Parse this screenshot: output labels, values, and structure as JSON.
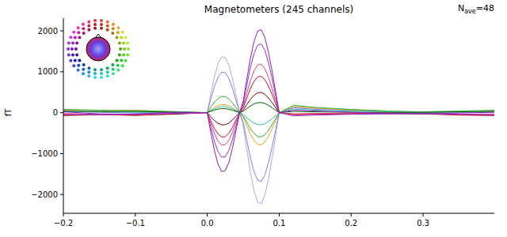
{
  "chart_data": {
    "type": "line",
    "title": "Magnetometers (245 channels)",
    "annotation": {
      "base": "N",
      "subscript": "ave",
      "suffix": "=48"
    },
    "y_label": "fT",
    "xlim": [
      -0.2,
      0.399
    ],
    "ylim": [
      -2460,
      2310
    ],
    "xticks": [
      {
        "value": -0.2,
        "label": "−0.2"
      },
      {
        "value": -0.1,
        "label": "−0.1"
      },
      {
        "value": 0,
        "label": "0.0"
      },
      {
        "value": 0.1,
        "label": "0.1"
      },
      {
        "value": 0.2,
        "label": "0.2"
      },
      {
        "value": 0.3,
        "label": "0.3"
      }
    ],
    "yticks": [
      {
        "value": -2000,
        "label": "−2000"
      },
      {
        "value": -1000,
        "label": "−1000"
      },
      0,
      1000,
      2000
    ],
    "grid": false,
    "x": [
      -0.2,
      -0.15,
      -0.1,
      -0.05,
      0,
      0.005,
      0.01,
      0.015,
      0.02,
      0.025,
      0.03,
      0.035,
      0.04,
      0.045,
      0.05,
      0.055,
      0.06,
      0.065,
      0.07,
      0.075,
      0.08,
      0.085,
      0.09,
      0.095,
      0.1,
      0.12,
      0.15,
      0.2,
      0.25,
      0.3,
      0.35,
      0.399
    ],
    "series": [
      {
        "color": "#b0a8f0",
        "values": [
          60,
          40,
          30,
          20,
          0,
          469,
          883,
          1201,
          1366,
          1352,
          1159,
          828,
          414,
          0,
          -315,
          -900,
          -1463,
          -1913,
          -2183,
          -2228,
          -2025,
          -1620,
          -1125,
          -563,
          0,
          140,
          100,
          60,
          30,
          20,
          30,
          40
        ]
      },
      {
        "color": "#8080e8",
        "values": [
          30,
          10,
          -10,
          0,
          0,
          340,
          640,
          870,
          990,
          980,
          840,
          600,
          300,
          0,
          -238,
          -680,
          -1105,
          -1445,
          -1649,
          -1683,
          -1530,
          -1224,
          -850,
          -425,
          0,
          120,
          80,
          50,
          20,
          0,
          10,
          20
        ]
      },
      {
        "color": "#f0a020",
        "values": [
          70,
          50,
          60,
          20,
          0,
          68,
          128,
          174,
          198,
          196,
          168,
          120,
          60,
          0,
          -112,
          -320,
          -520,
          -680,
          -776,
          -792,
          -720,
          -576,
          -400,
          -200,
          0,
          150,
          110,
          70,
          40,
          10,
          20,
          30
        ]
      },
      {
        "color": "#30b030",
        "values": [
          80,
          60,
          50,
          30,
          0,
          136,
          256,
          348,
          396,
          392,
          336,
          240,
          120,
          0,
          -84,
          -240,
          -390,
          -510,
          -582,
          -594,
          -540,
          -432,
          -300,
          -150,
          0,
          180,
          130,
          80,
          40,
          20,
          40,
          60
        ]
      },
      {
        "color": "#30c0a0",
        "values": [
          20,
          30,
          10,
          10,
          0,
          51,
          96,
          131,
          149,
          147,
          126,
          90,
          45,
          0,
          -42,
          -120,
          -195,
          -255,
          -291,
          -297,
          -270,
          -216,
          -150,
          -75,
          0,
          90,
          60,
          40,
          20,
          10,
          20,
          20
        ]
      },
      {
        "color": "#006000",
        "values": [
          40,
          20,
          30,
          10,
          0,
          34,
          64,
          87,
          99,
          98,
          84,
          60,
          30,
          0,
          35,
          100,
          163,
          213,
          243,
          248,
          225,
          180,
          125,
          63,
          0,
          30,
          20,
          10,
          0,
          10,
          20,
          30
        ]
      },
      {
        "color": "#800000",
        "values": [
          -70,
          -50,
          -60,
          -40,
          0,
          -102,
          -192,
          -261,
          -297,
          -294,
          -252,
          -180,
          -90,
          0,
          70,
          200,
          325,
          425,
          485,
          495,
          450,
          360,
          250,
          125,
          0,
          -40,
          -30,
          -20,
          -10,
          -20,
          -50,
          -60
        ]
      },
      {
        "color": "#c01030",
        "values": [
          -60,
          -40,
          -70,
          -30,
          0,
          -204,
          -384,
          -522,
          -594,
          -588,
          -504,
          -360,
          -180,
          0,
          126,
          360,
          585,
          765,
          873,
          891,
          810,
          648,
          450,
          225,
          0,
          -50,
          -40,
          -30,
          -20,
          -30,
          -60,
          -70
        ]
      },
      {
        "color": "#e04080",
        "values": [
          -20,
          -40,
          -50,
          -20,
          0,
          -272,
          -512,
          -696,
          -792,
          -784,
          -672,
          -480,
          -240,
          0,
          168,
          480,
          780,
          1020,
          1164,
          1188,
          1080,
          864,
          600,
          300,
          0,
          -30,
          -20,
          -10,
          -10,
          -20,
          -40,
          -30
        ]
      },
      {
        "color": "#9b30d0",
        "values": [
          -40,
          -50,
          -30,
          -20,
          0,
          -374,
          -704,
          -957,
          -1089,
          -1078,
          -924,
          -660,
          -330,
          0,
          238,
          680,
          1105,
          1445,
          1649,
          1683,
          1530,
          1224,
          850,
          425,
          0,
          -80,
          -60,
          -40,
          -30,
          -20,
          -40,
          -50
        ]
      },
      {
        "color": "#8a1fc0",
        "values": [
          20,
          -30,
          -40,
          10,
          0,
          -493,
          -928,
          -1262,
          -1436,
          -1421,
          -1218,
          -870,
          -435,
          0,
          287,
          820,
          1333,
          1743,
          1989,
          2030,
          1845,
          1476,
          1025,
          513,
          0,
          60,
          40,
          10,
          -20,
          -30,
          -10,
          10
        ]
      }
    ]
  }
}
